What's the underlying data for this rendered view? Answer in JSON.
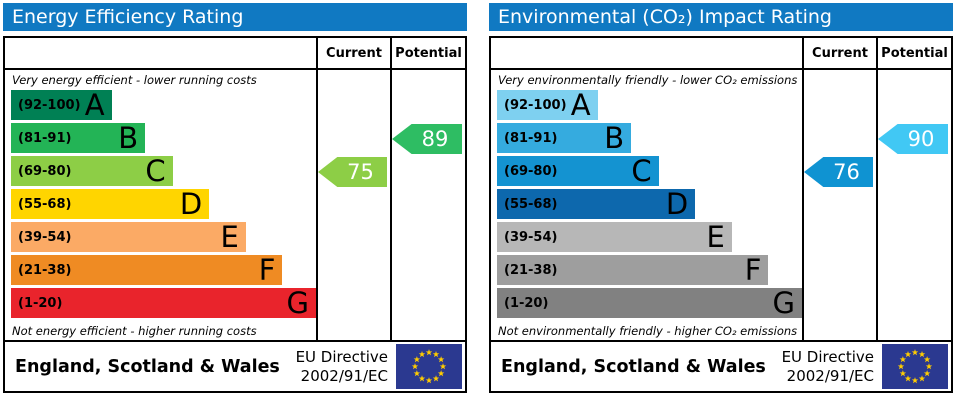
{
  "header_color": "#1079c2",
  "eu_flag": {
    "background": "#2b3990",
    "star": "#ffcc00"
  },
  "panels": [
    {
      "title": "Energy Efficiency Rating",
      "columns": {
        "current": "Current",
        "potential": "Potential"
      },
      "top_note": "Very energy efficient - lower running costs",
      "bottom_note": "Not energy efficient - higher running costs",
      "bands": [
        {
          "letter": "A",
          "range": "(92-100)",
          "color": "#008054",
          "width_pct": 33
        },
        {
          "letter": "B",
          "range": "(81-91)",
          "color": "#23b456",
          "width_pct": 44
        },
        {
          "letter": "C",
          "range": "(69-80)",
          "color": "#8dce46",
          "width_pct": 53
        },
        {
          "letter": "D",
          "range": "(55-68)",
          "color": "#ffd500",
          "width_pct": 65
        },
        {
          "letter": "E",
          "range": "(39-54)",
          "color": "#fbaa65",
          "width_pct": 77
        },
        {
          "letter": "F",
          "range": "(21-38)",
          "color": "#ef8b23",
          "width_pct": 89
        },
        {
          "letter": "G",
          "range": "(1-20)",
          "color": "#e9242c",
          "width_pct": 100
        }
      ],
      "current": {
        "value": "75",
        "band": "C",
        "color": "#8dce46"
      },
      "potential": {
        "value": "89",
        "band": "B",
        "color": "#2ebd63"
      },
      "footer": {
        "region": "England, Scotland & Wales",
        "directive_line1": "EU Directive",
        "directive_line2": "2002/91/EC"
      }
    },
    {
      "title": "Environmental (CO₂) Impact Rating",
      "columns": {
        "current": "Current",
        "potential": "Potential"
      },
      "top_note": "Very environmentally friendly - lower CO₂ emissions",
      "bottom_note": "Not environmentally friendly - higher CO₂ emissions",
      "bands": [
        {
          "letter": "A",
          "range": "(92-100)",
          "color": "#7ed0f0",
          "width_pct": 33
        },
        {
          "letter": "B",
          "range": "(81-91)",
          "color": "#35abdf",
          "width_pct": 44
        },
        {
          "letter": "C",
          "range": "(69-80)",
          "color": "#1493d1",
          "width_pct": 53
        },
        {
          "letter": "D",
          "range": "(55-68)",
          "color": "#0d68ad",
          "width_pct": 65
        },
        {
          "letter": "E",
          "range": "(39-54)",
          "color": "#b7b7b7",
          "width_pct": 77
        },
        {
          "letter": "F",
          "range": "(21-38)",
          "color": "#9e9e9e",
          "width_pct": 89
        },
        {
          "letter": "G",
          "range": "(1-20)",
          "color": "#818181",
          "width_pct": 100
        }
      ],
      "current": {
        "value": "76",
        "band": "C",
        "color": "#0f93d2"
      },
      "potential": {
        "value": "90",
        "band": "B",
        "color": "#41c8f4"
      },
      "footer": {
        "region": "England, Scotland & Wales",
        "directive_line1": "EU Directive",
        "directive_line2": "2002/91/EC"
      }
    }
  ],
  "chart_data": [
    {
      "type": "bar",
      "title": "Energy Efficiency Rating",
      "orientation": "horizontal",
      "categories": [
        "A",
        "B",
        "C",
        "D",
        "E",
        "F",
        "G"
      ],
      "band_ranges": [
        "92-100",
        "81-91",
        "69-80",
        "55-68",
        "39-54",
        "21-38",
        "1-20"
      ],
      "bar_length_pct": [
        33,
        44,
        53,
        65,
        77,
        89,
        100
      ],
      "markers": {
        "current": 75,
        "potential": 89
      },
      "current_band": "C",
      "potential_band": "B",
      "top_annotation": "Very energy efficient - lower running costs",
      "bottom_annotation": "Not energy efficient - higher running costs",
      "legend_position": "top-right-columns",
      "grid": false
    },
    {
      "type": "bar",
      "title": "Environmental (CO₂) Impact Rating",
      "orientation": "horizontal",
      "categories": [
        "A",
        "B",
        "C",
        "D",
        "E",
        "F",
        "G"
      ],
      "band_ranges": [
        "92-100",
        "81-91",
        "69-80",
        "55-68",
        "39-54",
        "21-38",
        "1-20"
      ],
      "bar_length_pct": [
        33,
        44,
        53,
        65,
        77,
        89,
        100
      ],
      "markers": {
        "current": 76,
        "potential": 90
      },
      "current_band": "C",
      "potential_band": "B",
      "top_annotation": "Very environmentally friendly - lower CO₂ emissions",
      "bottom_annotation": "Not environmentally friendly - higher CO₂ emissions",
      "legend_position": "top-right-columns",
      "grid": false
    }
  ]
}
